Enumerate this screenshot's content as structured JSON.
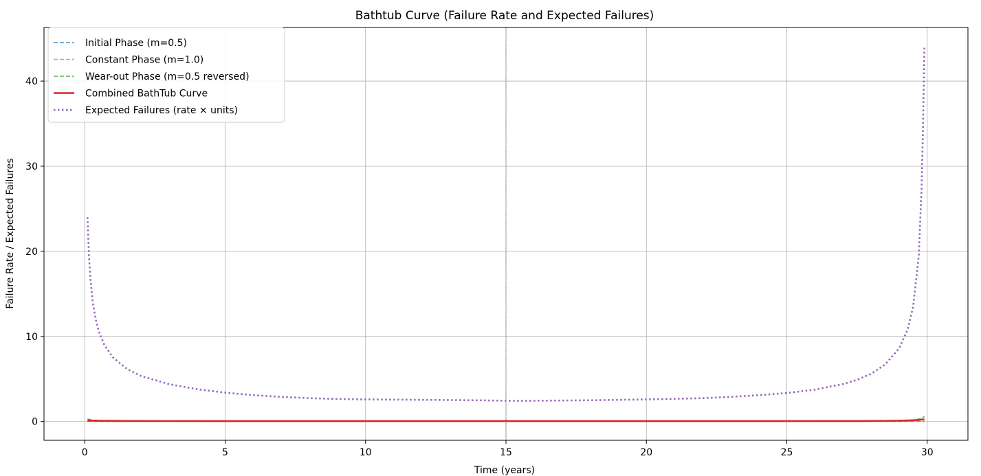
{
  "chart_data": {
    "type": "line",
    "title": "Bathtub Curve (Failure Rate and Expected Failures)",
    "xlabel": "Time (years)",
    "ylabel": "Failure Rate / Expected Failures",
    "xlim": [
      -1.45,
      31.45
    ],
    "ylim": [
      -2.2,
      46.3
    ],
    "xticks": [
      0,
      5,
      10,
      15,
      20,
      25,
      30
    ],
    "yticks": [
      0,
      10,
      20,
      30,
      40
    ],
    "grid": true,
    "legend_position": "upper-left",
    "vertical_reference_line": {
      "x": 15,
      "style": "dotted",
      "color": "#777777"
    },
    "series": [
      {
        "name": "Initial Phase (m=0.5)",
        "style": "dashed",
        "color": "#1f77b4",
        "x": [
          0.1,
          0.3,
          0.5,
          1,
          2,
          3,
          5,
          8,
          10,
          15,
          20,
          25,
          28,
          29,
          29.5,
          29.9
        ],
        "y": [
          0.3,
          0.17,
          0.13,
          0.09,
          0.065,
          0.055,
          0.042,
          0.034,
          0.03,
          0.025,
          0.022,
          0.019,
          0.018,
          0.018,
          0.018,
          0.018
        ]
      },
      {
        "name": "Constant Phase (m=1.0)",
        "style": "dashed",
        "color": "#ff7f0e",
        "x": [
          0.1,
          29.9
        ],
        "y": [
          0.03,
          0.03
        ]
      },
      {
        "name": "Wear-out Phase (m=0.5 reversed)",
        "style": "dashed",
        "color": "#2ca02c",
        "x": [
          0.1,
          5,
          10,
          15,
          20,
          25,
          27,
          28,
          29,
          29.5,
          29.8,
          29.9
        ],
        "y": [
          0.018,
          0.019,
          0.022,
          0.025,
          0.03,
          0.042,
          0.06,
          0.08,
          0.13,
          0.2,
          0.35,
          0.6
        ]
      },
      {
        "name": "Combined BathTub Curve",
        "style": "solid",
        "color": "#d62728",
        "x": [
          0.1,
          0.5,
          1,
          3,
          5,
          10,
          15,
          20,
          25,
          28,
          29,
          29.5,
          29.9
        ],
        "y": [
          0.12,
          0.09,
          0.075,
          0.06,
          0.055,
          0.05,
          0.05,
          0.05,
          0.055,
          0.07,
          0.1,
          0.15,
          0.25
        ]
      },
      {
        "name": "Expected Failures (rate × units)",
        "style": "dotted",
        "color": "#9467bd",
        "x": [
          0.1,
          0.15,
          0.2,
          0.3,
          0.4,
          0.5,
          0.7,
          1,
          1.5,
          2,
          3,
          4,
          5,
          6,
          7,
          8,
          9,
          10,
          12,
          14,
          15,
          16,
          18,
          20,
          22,
          23,
          24,
          25,
          26,
          27,
          27.5,
          28,
          28.5,
          29,
          29.3,
          29.5,
          29.7,
          29.8,
          29.85,
          29.9
        ],
        "y": [
          24,
          19.5,
          16.8,
          13.7,
          11.9,
          10.6,
          9.0,
          7.55,
          6.2,
          5.35,
          4.4,
          3.8,
          3.4,
          3.1,
          2.9,
          2.75,
          2.65,
          2.6,
          2.55,
          2.5,
          2.45,
          2.45,
          2.5,
          2.6,
          2.75,
          2.9,
          3.1,
          3.35,
          3.75,
          4.4,
          4.9,
          5.6,
          6.7,
          8.6,
          10.8,
          13.5,
          19.5,
          27.5,
          34.5,
          44
        ]
      }
    ]
  }
}
